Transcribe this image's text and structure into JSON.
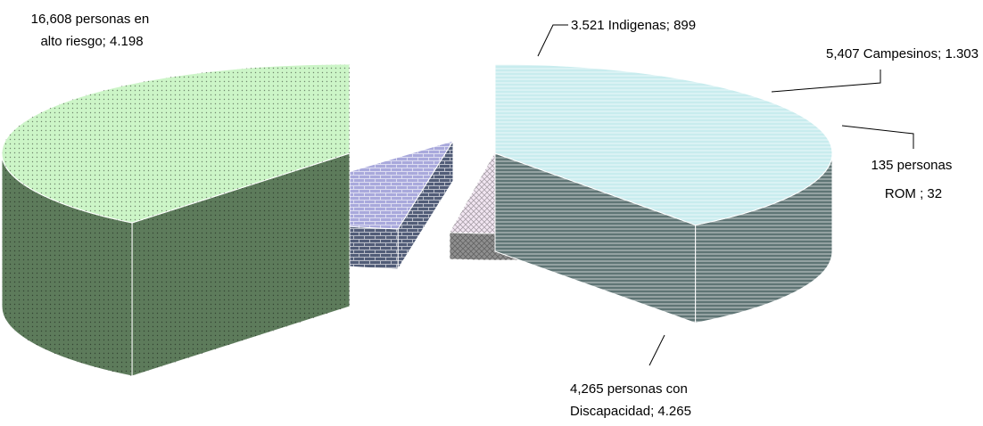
{
  "chart_data": {
    "type": "pie",
    "style": "exploded-3d",
    "title": "",
    "legend": "none",
    "slices": [
      {
        "key": "alto-riesgo",
        "label_lines": [
          "16,608 personas en",
          "alto riesgo; 4.198"
        ],
        "value": 4198,
        "top_color": "#ccf5c7",
        "side_color": "#5d7b5b"
      },
      {
        "key": "indigenas",
        "label_lines": [
          "3.521 Indigenas; 899"
        ],
        "value": 899,
        "top_color": "#a9a9dc",
        "side_color": "#525d78"
      },
      {
        "key": "campesinos",
        "label_lines": [
          "5,407 Campesinos; 1.303"
        ],
        "value": 1303,
        "top_color": "#f2e6f2",
        "side_color": "#8f8f8f"
      },
      {
        "key": "rom",
        "label_lines": [
          "135 personas",
          "ROM ; 32"
        ],
        "value": 32,
        "top_color": "#9a9a9a",
        "side_color": "#404a40"
      },
      {
        "key": "discapacidad",
        "label_lines": [
          "4,265 personas con",
          "Discapacidad; 4.265"
        ],
        "value": 4265,
        "top_color": "#c8ecee",
        "side_color": "#5f7575"
      }
    ]
  }
}
